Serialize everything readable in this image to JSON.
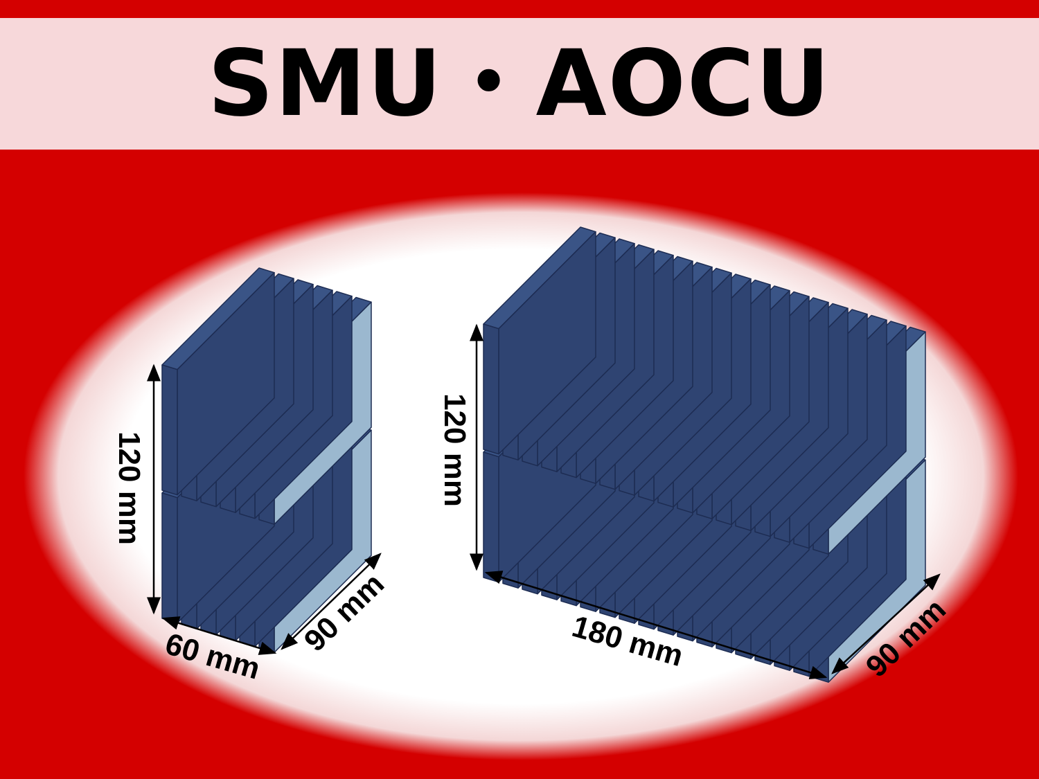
{
  "title": "SMU・AOCU",
  "colors": {
    "background": "#d40000",
    "title_band": "#f7d8da",
    "plate_face": "#2f4472",
    "plate_top": "#3a5486",
    "plate_side": "#9bb8cf",
    "outline": "#1d2c52"
  },
  "modules": [
    {
      "id": "small",
      "plates": 6,
      "layers": 2,
      "dims": {
        "height": "120 mm",
        "width": "60 mm",
        "depth": "90 mm"
      }
    },
    {
      "id": "large",
      "plates": 18,
      "layers": 2,
      "dims": {
        "height": "120 mm",
        "width": "180 mm",
        "depth": "90 mm"
      }
    }
  ]
}
